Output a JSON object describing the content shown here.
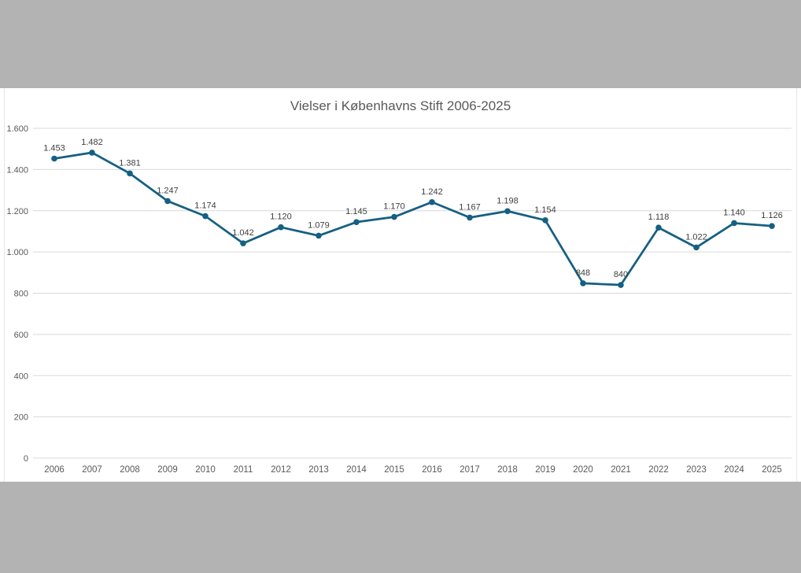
{
  "page": {
    "background_color": "#b3b3b3",
    "panel_color": "#ffffff"
  },
  "chart_data": {
    "type": "line",
    "title": "Vielser i Københavns Stift 2006-2025",
    "categories": [
      "2006",
      "2007",
      "2008",
      "2009",
      "2010",
      "2011",
      "2012",
      "2013",
      "2014",
      "2015",
      "2016",
      "2017",
      "2018",
      "2019",
      "2020",
      "2021",
      "2022",
      "2023",
      "2024",
      "2025"
    ],
    "values": [
      1453,
      1482,
      1381,
      1247,
      1174,
      1042,
      1120,
      1079,
      1145,
      1170,
      1242,
      1167,
      1198,
      1154,
      848,
      840,
      1118,
      1022,
      1140,
      1126
    ],
    "point_labels": [
      "1.453",
      "1.482",
      "1.381",
      "1.247",
      "1.174",
      "1.042",
      "1.120",
      "1.079",
      "1.145",
      "1.170",
      "1.242",
      "1.167",
      "1.198",
      "1.154",
      "848",
      "840",
      "1.118",
      "1.022",
      "1.140",
      "1.126"
    ],
    "xlabel": "",
    "ylabel": "",
    "ylim": [
      0,
      1600
    ],
    "y_tick_values": [
      0,
      200,
      400,
      600,
      800,
      1000,
      1200,
      1400,
      1600
    ],
    "y_tick_labels": [
      "0",
      "200",
      "400",
      "600",
      "800",
      "1.000",
      "1.200",
      "1.400",
      "1.600"
    ],
    "grid": true,
    "legend": "none",
    "series_color": "#156082",
    "gridline_color": "#d9d9d9",
    "axis_label_color": "#595959",
    "data_label_color": "#404040",
    "title_color": "#595959"
  }
}
